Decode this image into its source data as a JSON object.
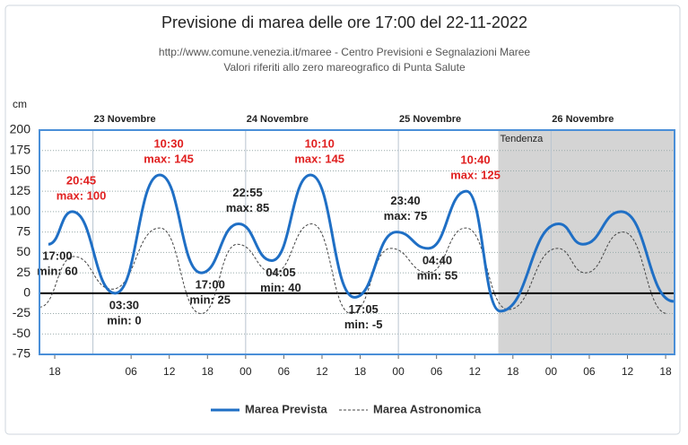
{
  "chart_data": {
    "type": "line",
    "title": "Previsione di marea delle ore 17:00 del 22-11-2022",
    "subtitle": [
      "http://www.comune.venezia.it/maree - Centro Previsioni e Segnalazioni Maree",
      "Valori riferiti allo zero mareografico di Punta Salute"
    ],
    "ylabel": "cm",
    "xlim": [
      -2.4,
      97.4
    ],
    "ylim": [
      -75,
      200
    ],
    "yticks": [
      200,
      175,
      150,
      125,
      100,
      75,
      50,
      25,
      0,
      -25,
      -50,
      -75
    ],
    "xticks": [
      {
        "value": 0,
        "label": "18"
      },
      {
        "value": 12,
        "label": "06"
      },
      {
        "value": 18,
        "label": "12"
      },
      {
        "value": 24,
        "label": "18"
      },
      {
        "value": 30,
        "label": "00"
      },
      {
        "value": 36,
        "label": "06"
      },
      {
        "value": 42,
        "label": "12"
      },
      {
        "value": 48,
        "label": "18"
      },
      {
        "value": 54,
        "label": "00"
      },
      {
        "value": 60,
        "label": "06"
      },
      {
        "value": 66,
        "label": "12"
      },
      {
        "value": 72,
        "label": "18"
      },
      {
        "value": 78,
        "label": "00"
      },
      {
        "value": 84,
        "label": "06"
      },
      {
        "value": 90,
        "label": "12"
      },
      {
        "value": 96,
        "label": "18"
      }
    ],
    "days": [
      "23 Novembre",
      "24 Novembre",
      "25 Novembre",
      "26 Novembre"
    ],
    "day_starts": [
      6,
      30,
      54,
      78
    ],
    "shaded_region": {
      "label": "Tendenza",
      "from": 69.7
    },
    "grid": true,
    "series": [
      {
        "name": "Marea Prevista",
        "color": "#1f6fc5",
        "x": [
          -1,
          2.75,
          9.5,
          16.5,
          23,
          28.9,
          34.1,
          40.2,
          47.1,
          53.7,
          58.7,
          64.7,
          70,
          79.2,
          83,
          89,
          97.3
        ],
        "values": [
          60,
          100,
          0,
          145,
          25,
          85,
          40,
          145,
          -5,
          75,
          55,
          125,
          -22,
          85,
          60,
          100,
          -10
        ],
        "time_labels": [
          "17:00",
          "20:45",
          "03:30",
          "10:30",
          "17:00",
          "22:55",
          "04:05",
          "10:10",
          "17:05",
          "23:40",
          "04:40",
          "10:40",
          null,
          null,
          null,
          null,
          null
        ],
        "value_labels": [
          "min: 60",
          "max: 100",
          "min: 0",
          "max: 145",
          "min: 25",
          "max: 85",
          "min: 40",
          "max: 145",
          "min: -5",
          "max: 75",
          "min: 55",
          "max: 125",
          null,
          null,
          null,
          null,
          null
        ],
        "label_colors": [
          "#222",
          "#e02020",
          "#222",
          "#e02020",
          "#222",
          "#222",
          "#222",
          "#e02020",
          "#222",
          "#222",
          "#222",
          "#e02020",
          null,
          null,
          null,
          null,
          null
        ]
      },
      {
        "name": "Marea Astronomica",
        "color": "#444",
        "dashed": true,
        "x": [
          -2.4,
          3,
          9,
          16.5,
          23,
          28.7,
          34.4,
          40.4,
          46.6,
          52.8,
          58.7,
          64.6,
          71.3,
          79,
          83.4,
          89.3,
          96.3
        ],
        "values": [
          -17,
          45,
          5,
          80,
          -25,
          60,
          25,
          85,
          -25,
          55,
          25,
          80,
          -20,
          55,
          25,
          75,
          -25
        ]
      }
    ]
  }
}
